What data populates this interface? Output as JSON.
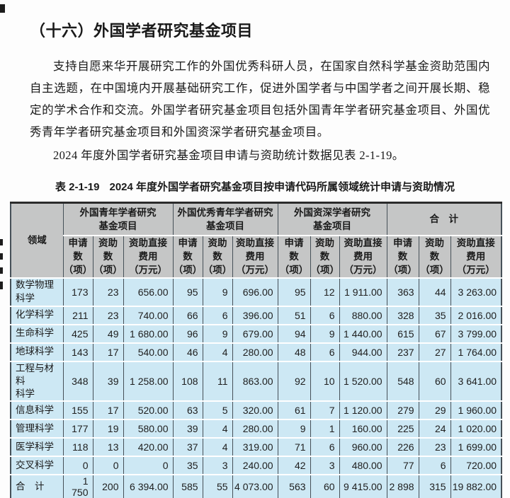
{
  "page": {
    "heading": "（十六）外国学者研究基金项目",
    "para1": "支持自愿来华开展研究工作的外国优秀科研人员，在国家自然科学基金资助范围内自主选题，在中国境内开展基础研究工作，促进外国学者与中国学者之间开展长期、稳定的学术合作和交流。外国学者研究基金项目包括外国青年学者研究基金项目、外国优秀青年学者研究基金项目和外国资深学者研究基金项目。",
    "para2": "2024 年度外国学者研究基金项目申请与资助统计数据见表 2-1-19。"
  },
  "table": {
    "title_label": "表 2-1-19",
    "title_text": "2024 年度外国学者研究基金项目按申请代码所属领域统计申请与资助情况",
    "corner_header": "领域",
    "groups": [
      {
        "label": "外国青年学者研究\n基金项目"
      },
      {
        "label": "外国优秀青年学者研究\n基金项目"
      },
      {
        "label": "外国资深学者研究\n基金项目"
      },
      {
        "label": "合　计"
      }
    ],
    "subheaders": [
      "申请\n数\n（项）",
      "资助\n数\n（项）",
      "资助直接\n费用\n（万元）"
    ],
    "rows": [
      {
        "label": "数学物理\n科学",
        "values": [
          "173",
          "23",
          "656.00",
          "95",
          "9",
          "696.00",
          "95",
          "12",
          "1 911.00",
          "363",
          "44",
          "3 263.00"
        ]
      },
      {
        "label": "化学科学",
        "values": [
          "211",
          "23",
          "740.00",
          "66",
          "6",
          "396.00",
          "51",
          "6",
          "880.00",
          "328",
          "35",
          "2 016.00"
        ]
      },
      {
        "label": "生命科学",
        "values": [
          "425",
          "49",
          "1 680.00",
          "96",
          "9",
          "679.00",
          "94",
          "9",
          "1 440.00",
          "615",
          "67",
          "3 799.00"
        ]
      },
      {
        "label": "地球科学",
        "values": [
          "143",
          "17",
          "540.00",
          "46",
          "4",
          "280.00",
          "48",
          "6",
          "944.00",
          "237",
          "27",
          "1 764.00"
        ]
      },
      {
        "label": "工程与材料\n科学",
        "values": [
          "348",
          "39",
          "1 258.00",
          "108",
          "11",
          "863.00",
          "92",
          "10",
          "1 520.00",
          "548",
          "60",
          "3 641.00"
        ]
      },
      {
        "label": "信息科学",
        "values": [
          "155",
          "17",
          "520.00",
          "63",
          "5",
          "320.00",
          "61",
          "7",
          "1 120.00",
          "279",
          "29",
          "1 960.00"
        ]
      },
      {
        "label": "管理科学",
        "values": [
          "177",
          "19",
          "580.00",
          "39",
          "4",
          "280.00",
          "9",
          "1",
          "160.00",
          "225",
          "24",
          "1 020.00"
        ]
      },
      {
        "label": "医学科学",
        "values": [
          "118",
          "13",
          "420.00",
          "37",
          "4",
          "319.00",
          "71",
          "6",
          "960.00",
          "226",
          "23",
          "1 699.00"
        ]
      },
      {
        "label": "交叉科学",
        "values": [
          "0",
          "0",
          "0",
          "35",
          "3",
          "240.00",
          "42",
          "3",
          "480.00",
          "77",
          "6",
          "720.00"
        ]
      },
      {
        "label": "合　计",
        "values": [
          "1 750",
          "200",
          "6 394.00",
          "585",
          "55",
          "4 073.00",
          "563",
          "60",
          "9 415.00",
          "2 898",
          "315",
          "19 882.00"
        ]
      }
    ]
  },
  "colors": {
    "page_bg": "#fdfdfd",
    "table_header_bg": "#c5c6c6",
    "table_body_bg": "#cde8f4",
    "vertical_rule": "#465058",
    "horizontal_rule": "#ffffff",
    "outer_border": "#2b2b2b",
    "text": "#1a1a1a"
  }
}
